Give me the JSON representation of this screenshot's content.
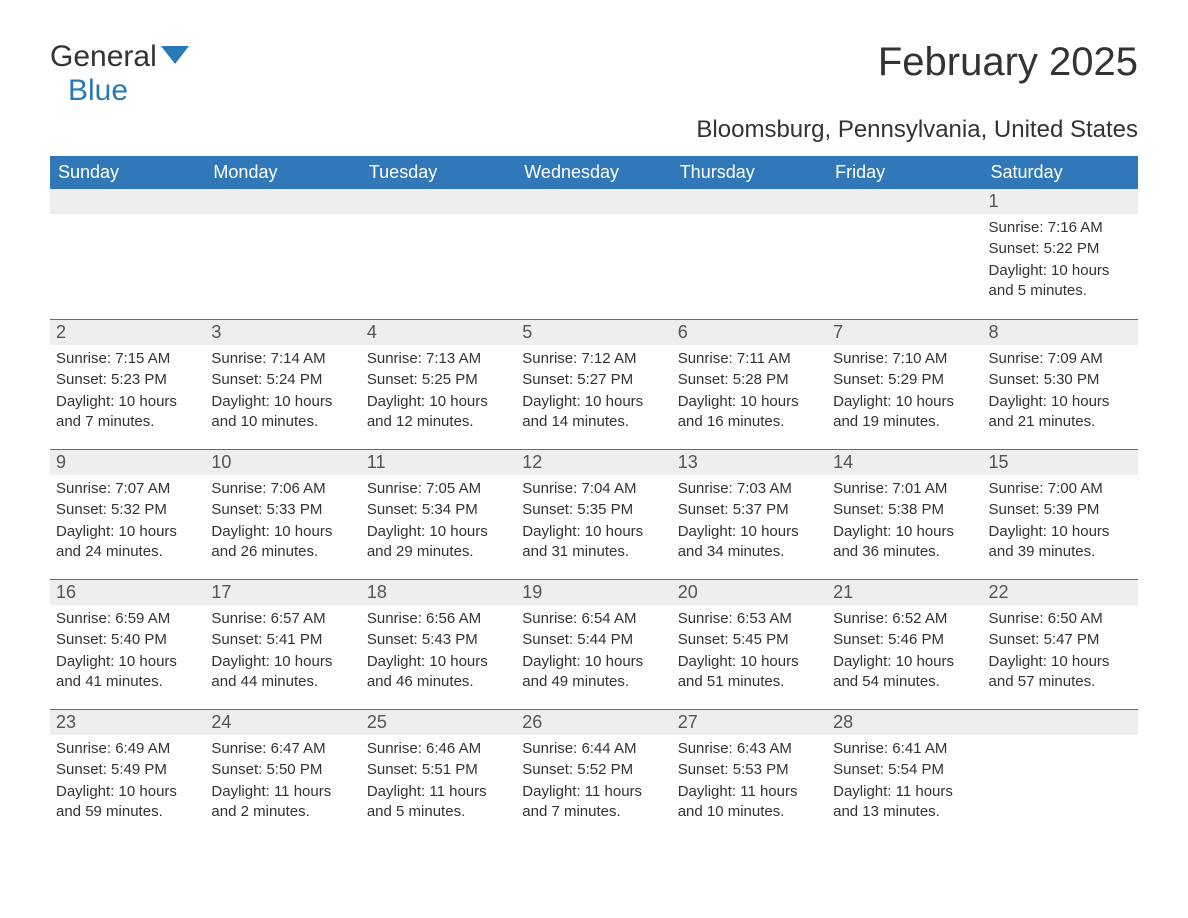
{
  "logo": {
    "text_general": "General",
    "text_blue": "Blue",
    "icon_color": "#2a7ab8"
  },
  "title": "February 2025",
  "location": "Bloomsburg, Pennsylvania, United States",
  "colors": {
    "header_bg": "#3178b8",
    "header_text": "#ffffff",
    "daynum_bg": "#eeeeee",
    "border_top": "#3178b8",
    "text": "#333333",
    "logo_blue": "#2a7ab8"
  },
  "weekdays": [
    "Sunday",
    "Monday",
    "Tuesday",
    "Wednesday",
    "Thursday",
    "Friday",
    "Saturday"
  ],
  "weeks": [
    [
      null,
      null,
      null,
      null,
      null,
      null,
      {
        "n": "1",
        "sunrise": "Sunrise: 7:16 AM",
        "sunset": "Sunset: 5:22 PM",
        "daylight": "Daylight: 10 hours and 5 minutes."
      }
    ],
    [
      {
        "n": "2",
        "sunrise": "Sunrise: 7:15 AM",
        "sunset": "Sunset: 5:23 PM",
        "daylight": "Daylight: 10 hours and 7 minutes."
      },
      {
        "n": "3",
        "sunrise": "Sunrise: 7:14 AM",
        "sunset": "Sunset: 5:24 PM",
        "daylight": "Daylight: 10 hours and 10 minutes."
      },
      {
        "n": "4",
        "sunrise": "Sunrise: 7:13 AM",
        "sunset": "Sunset: 5:25 PM",
        "daylight": "Daylight: 10 hours and 12 minutes."
      },
      {
        "n": "5",
        "sunrise": "Sunrise: 7:12 AM",
        "sunset": "Sunset: 5:27 PM",
        "daylight": "Daylight: 10 hours and 14 minutes."
      },
      {
        "n": "6",
        "sunrise": "Sunrise: 7:11 AM",
        "sunset": "Sunset: 5:28 PM",
        "daylight": "Daylight: 10 hours and 16 minutes."
      },
      {
        "n": "7",
        "sunrise": "Sunrise: 7:10 AM",
        "sunset": "Sunset: 5:29 PM",
        "daylight": "Daylight: 10 hours and 19 minutes."
      },
      {
        "n": "8",
        "sunrise": "Sunrise: 7:09 AM",
        "sunset": "Sunset: 5:30 PM",
        "daylight": "Daylight: 10 hours and 21 minutes."
      }
    ],
    [
      {
        "n": "9",
        "sunrise": "Sunrise: 7:07 AM",
        "sunset": "Sunset: 5:32 PM",
        "daylight": "Daylight: 10 hours and 24 minutes."
      },
      {
        "n": "10",
        "sunrise": "Sunrise: 7:06 AM",
        "sunset": "Sunset: 5:33 PM",
        "daylight": "Daylight: 10 hours and 26 minutes."
      },
      {
        "n": "11",
        "sunrise": "Sunrise: 7:05 AM",
        "sunset": "Sunset: 5:34 PM",
        "daylight": "Daylight: 10 hours and 29 minutes."
      },
      {
        "n": "12",
        "sunrise": "Sunrise: 7:04 AM",
        "sunset": "Sunset: 5:35 PM",
        "daylight": "Daylight: 10 hours and 31 minutes."
      },
      {
        "n": "13",
        "sunrise": "Sunrise: 7:03 AM",
        "sunset": "Sunset: 5:37 PM",
        "daylight": "Daylight: 10 hours and 34 minutes."
      },
      {
        "n": "14",
        "sunrise": "Sunrise: 7:01 AM",
        "sunset": "Sunset: 5:38 PM",
        "daylight": "Daylight: 10 hours and 36 minutes."
      },
      {
        "n": "15",
        "sunrise": "Sunrise: 7:00 AM",
        "sunset": "Sunset: 5:39 PM",
        "daylight": "Daylight: 10 hours and 39 minutes."
      }
    ],
    [
      {
        "n": "16",
        "sunrise": "Sunrise: 6:59 AM",
        "sunset": "Sunset: 5:40 PM",
        "daylight": "Daylight: 10 hours and 41 minutes."
      },
      {
        "n": "17",
        "sunrise": "Sunrise: 6:57 AM",
        "sunset": "Sunset: 5:41 PM",
        "daylight": "Daylight: 10 hours and 44 minutes."
      },
      {
        "n": "18",
        "sunrise": "Sunrise: 6:56 AM",
        "sunset": "Sunset: 5:43 PM",
        "daylight": "Daylight: 10 hours and 46 minutes."
      },
      {
        "n": "19",
        "sunrise": "Sunrise: 6:54 AM",
        "sunset": "Sunset: 5:44 PM",
        "daylight": "Daylight: 10 hours and 49 minutes."
      },
      {
        "n": "20",
        "sunrise": "Sunrise: 6:53 AM",
        "sunset": "Sunset: 5:45 PM",
        "daylight": "Daylight: 10 hours and 51 minutes."
      },
      {
        "n": "21",
        "sunrise": "Sunrise: 6:52 AM",
        "sunset": "Sunset: 5:46 PM",
        "daylight": "Daylight: 10 hours and 54 minutes."
      },
      {
        "n": "22",
        "sunrise": "Sunrise: 6:50 AM",
        "sunset": "Sunset: 5:47 PM",
        "daylight": "Daylight: 10 hours and 57 minutes."
      }
    ],
    [
      {
        "n": "23",
        "sunrise": "Sunrise: 6:49 AM",
        "sunset": "Sunset: 5:49 PM",
        "daylight": "Daylight: 10 hours and 59 minutes."
      },
      {
        "n": "24",
        "sunrise": "Sunrise: 6:47 AM",
        "sunset": "Sunset: 5:50 PM",
        "daylight": "Daylight: 11 hours and 2 minutes."
      },
      {
        "n": "25",
        "sunrise": "Sunrise: 6:46 AM",
        "sunset": "Sunset: 5:51 PM",
        "daylight": "Daylight: 11 hours and 5 minutes."
      },
      {
        "n": "26",
        "sunrise": "Sunrise: 6:44 AM",
        "sunset": "Sunset: 5:52 PM",
        "daylight": "Daylight: 11 hours and 7 minutes."
      },
      {
        "n": "27",
        "sunrise": "Sunrise: 6:43 AM",
        "sunset": "Sunset: 5:53 PM",
        "daylight": "Daylight: 11 hours and 10 minutes."
      },
      {
        "n": "28",
        "sunrise": "Sunrise: 6:41 AM",
        "sunset": "Sunset: 5:54 PM",
        "daylight": "Daylight: 11 hours and 13 minutes."
      },
      null
    ]
  ]
}
